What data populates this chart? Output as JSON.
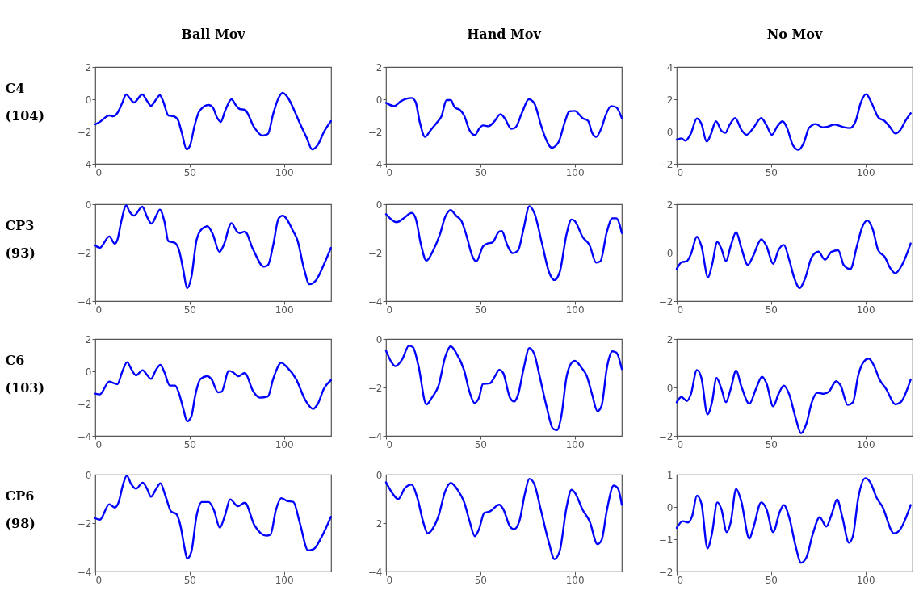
{
  "chart_data": [
    {
      "type": "line",
      "title": "Ball Mov",
      "ylabel": "C4 (104)",
      "xlim": [
        0,
        125
      ],
      "xticks": [
        0,
        50,
        100
      ],
      "ylim": [
        -4,
        2
      ],
      "yticks": [
        -4,
        -2,
        0,
        2
      ],
      "x": [
        0,
        2.4,
        7.4,
        9.5,
        11.7,
        14.2,
        16.4,
        18.1,
        20.5,
        24.9,
        27.4,
        29.5,
        32.3,
        34.2,
        35.9,
        38.7,
        41.6,
        43.7,
        45.9,
        48.4,
        50.1,
        52.7,
        55.1,
        60.1,
        62.3,
        64.4,
        66.5,
        68.7,
        72.2,
        74.4,
        76.5,
        79.3,
        84.3,
        88.6,
        91.5,
        94.3,
        97.2,
        99.3,
        102.1,
        105.7,
        108.5,
        112.1,
        114.9,
        117.8,
        121.3,
        124.9
      ],
      "series": [
        {
          "color": "#0000ff",
          "values": [
            -1.55,
            -1.4,
            -1.0,
            -1.05,
            -0.85,
            -0.25,
            0.3,
            0.1,
            -0.2,
            0.3,
            -0.1,
            -0.4,
            0,
            0.25,
            -0.1,
            -1.0,
            -1.05,
            -1.25,
            -2.1,
            -3.1,
            -2.9,
            -1.6,
            -0.75,
            -0.35,
            -0.5,
            -1.1,
            -1.4,
            -0.75,
            0,
            -0.35,
            -0.6,
            -0.65,
            -1.75,
            -2.25,
            -2.15,
            -0.9,
            0.1,
            0.4,
            0.1,
            -0.75,
            -1.5,
            -2.4,
            -3.1,
            -2.85,
            -2.0,
            -1.35
          ]
        }
      ]
    },
    {
      "type": "line",
      "title": "Hand Mov",
      "xlim": [
        0,
        125
      ],
      "xticks": [
        0,
        50,
        100
      ],
      "ylim": [
        -4,
        2
      ],
      "yticks": [
        -4,
        -2,
        0,
        2
      ],
      "x": [
        0,
        4.3,
        7.9,
        10.7,
        13.6,
        15.7,
        17.9,
        20.7,
        23.6,
        27.1,
        29.3,
        32.1,
        34.3,
        36.4,
        39.3,
        41.4,
        44.3,
        47.1,
        49.3,
        51.4,
        54.3,
        57.1,
        60.7,
        62.9,
        66.4,
        68.6,
        72.1,
        75.7,
        78.6,
        82.1,
        84.3,
        87.9,
        91.4,
        95,
        97.1,
        100,
        104.3,
        107.1,
        109.3,
        111.4,
        114.3,
        116.4,
        119.3,
        122.1,
        125
      ],
      "series": [
        {
          "color": "#0000ff",
          "values": [
            -0.22,
            -0.42,
            -0.12,
            0.03,
            0.08,
            -0.17,
            -1.42,
            -2.33,
            -1.92,
            -1.42,
            -1.08,
            -0.05,
            -0.05,
            -0.5,
            -0.67,
            -1.0,
            -1.92,
            -2.22,
            -1.83,
            -1.62,
            -1.67,
            -1.42,
            -0.92,
            -1.17,
            -1.83,
            -1.75,
            -0.83,
            0,
            -0.25,
            -1.58,
            -2.33,
            -3.0,
            -2.67,
            -1.33,
            -0.75,
            -0.72,
            -1.17,
            -1.33,
            -2.08,
            -2.33,
            -1.75,
            -1.0,
            -0.42,
            -0.5,
            -1.17
          ]
        }
      ]
    },
    {
      "type": "line",
      "title": "No Mov",
      "xlim": [
        0,
        125
      ],
      "xticks": [
        0,
        50,
        100
      ],
      "ylim": [
        -2,
        4
      ],
      "yticks": [
        -2,
        0,
        2,
        4
      ],
      "x": [
        0,
        2.5,
        4.6,
        7.5,
        10.7,
        13.1,
        15.9,
        18,
        20.8,
        23.7,
        25.8,
        27.9,
        31,
        34.2,
        37,
        40.6,
        44.8,
        47.6,
        50.4,
        53.2,
        56.1,
        58.2,
        61.7,
        64.5,
        67.3,
        70.1,
        73.7,
        77.2,
        80,
        83.5,
        87.7,
        91.8,
        94.8,
        97.6,
        100.4,
        103.2,
        106.8,
        110.3,
        113.1,
        115.9,
        118.7,
        121.5,
        124
      ],
      "series": [
        {
          "color": "#0000ff",
          "values": [
            -0.5,
            -0.42,
            -0.57,
            -0.12,
            0.81,
            0.47,
            -0.62,
            -0.2,
            0.64,
            0.05,
            -0.08,
            0.39,
            0.84,
            0.13,
            -0.2,
            0.22,
            0.84,
            0.39,
            -0.2,
            0.3,
            0.64,
            0.3,
            -0.87,
            -1.13,
            -0.71,
            0.22,
            0.47,
            0.27,
            0.3,
            0.44,
            0.3,
            0.22,
            0.64,
            1.8,
            2.32,
            1.8,
            0.89,
            0.64,
            0.27,
            -0.12,
            0.13,
            0.72,
            1.14
          ]
        }
      ]
    },
    {
      "type": "line",
      "ylabel": "CP3 (93)",
      "xlim": [
        0,
        125
      ],
      "xticks": [
        0,
        50,
        100
      ],
      "ylim": [
        -4,
        0
      ],
      "yticks": [
        -4,
        -2,
        0
      ],
      "x": [
        0,
        2.4,
        7.4,
        10.3,
        11.7,
        13.8,
        16.4,
        18.1,
        20.5,
        24.9,
        27.4,
        29.8,
        32.3,
        34.2,
        36.6,
        38.7,
        42.3,
        44.4,
        46.6,
        48.7,
        50.9,
        53.7,
        56.5,
        59.4,
        62.3,
        65.8,
        68,
        72.2,
        75.1,
        76.5,
        79.3,
        83.6,
        89.3,
        91.5,
        94.3,
        97.2,
        99.3,
        105,
        107.1,
        110.7,
        113.5,
        117.1,
        121.3,
        124.9
      ],
      "series": [
        {
          "color": "#0000ff",
          "values": [
            -1.7,
            -1.8,
            -1.33,
            -1.63,
            -1.47,
            -0.7,
            -0.05,
            -0.3,
            -0.47,
            -0.1,
            -0.52,
            -0.8,
            -0.47,
            -0.22,
            -0.7,
            -1.52,
            -1.6,
            -1.9,
            -2.7,
            -3.47,
            -3.02,
            -1.47,
            -1.02,
            -0.91,
            -1.24,
            -1.97,
            -1.7,
            -0.78,
            -1.13,
            -1.19,
            -1.13,
            -1.86,
            -2.58,
            -2.52,
            -1.69,
            -0.58,
            -0.47,
            -1.13,
            -1.47,
            -2.69,
            -3.3,
            -3.13,
            -2.47,
            -1.8
          ]
        }
      ]
    },
    {
      "type": "line",
      "xlim": [
        0,
        125
      ],
      "xticks": [
        0,
        50,
        100
      ],
      "ylim": [
        -4,
        0
      ],
      "yticks": [
        -4,
        -2,
        0
      ],
      "x": [
        0,
        5.7,
        9.3,
        13.6,
        15.7,
        18.6,
        21.4,
        25,
        28.6,
        31.4,
        34.3,
        37.1,
        40,
        42.9,
        45.7,
        47.9,
        51.4,
        53.6,
        56.4,
        60,
        61.4,
        64.3,
        67.1,
        70,
        72.9,
        76,
        78.6,
        82.9,
        86.4,
        89.3,
        92.1,
        95.7,
        98.3,
        100,
        104.3,
        107.9,
        111.4,
        113.6,
        117.1,
        120,
        122.1,
        125
      ],
      "series": [
        {
          "color": "#0000ff",
          "values": [
            -0.41,
            -0.74,
            -0.58,
            -0.36,
            -0.58,
            -1.69,
            -2.33,
            -1.91,
            -1.24,
            -0.52,
            -0.24,
            -0.47,
            -0.69,
            -1.36,
            -2.13,
            -2.36,
            -1.74,
            -1.63,
            -1.58,
            -1.13,
            -1.11,
            -1.69,
            -2.02,
            -1.91,
            -1.02,
            -0.08,
            -0.36,
            -1.69,
            -2.8,
            -3.13,
            -2.8,
            -1.24,
            -0.63,
            -0.69,
            -1.36,
            -1.69,
            -2.41,
            -2.36,
            -1.13,
            -0.58,
            -0.58,
            -1.19
          ]
        }
      ]
    },
    {
      "type": "line",
      "xlim": [
        0,
        125
      ],
      "xticks": [
        0,
        50,
        100
      ],
      "ylim": [
        -2,
        2
      ],
      "yticks": [
        -2,
        0,
        2
      ],
      "x": [
        0,
        2.5,
        5.4,
        7.5,
        10.7,
        13.1,
        16.6,
        18.7,
        21.5,
        23.7,
        26.1,
        28.6,
        31.5,
        34.2,
        37.7,
        40.6,
        44.8,
        47.6,
        51.1,
        53.9,
        56.8,
        59.6,
        62.4,
        65.2,
        68,
        71.6,
        75.1,
        78.6,
        82.1,
        85.6,
        88.5,
        92,
        95.5,
        98.3,
        101.1,
        104,
        106.8,
        110.3,
        113.1,
        115.9,
        119.4,
        124
      ],
      "series": [
        {
          "color": "#0000ff",
          "values": [
            -0.68,
            -0.4,
            -0.35,
            -0.07,
            0.66,
            0.27,
            -1.02,
            -0.51,
            0.44,
            0.16,
            -0.35,
            0.27,
            0.85,
            0.21,
            -0.51,
            -0.12,
            0.55,
            0.27,
            -0.46,
            0.1,
            0.32,
            -0.29,
            -1.07,
            -1.46,
            -1.07,
            -0.18,
            0.04,
            -0.29,
            0.04,
            0.1,
            -0.51,
            -0.68,
            0.27,
            1.05,
            1.33,
            0.94,
            0.1,
            -0.18,
            -0.63,
            -0.85,
            -0.51,
            0.38
          ]
        }
      ]
    },
    {
      "type": "line",
      "ylabel": "C6 (103)",
      "xlim": [
        0,
        125
      ],
      "xticks": [
        0,
        50,
        100
      ],
      "ylim": [
        -4,
        2
      ],
      "yticks": [
        -4,
        -2,
        0,
        2
      ],
      "x": [
        0,
        2.4,
        7.4,
        9.5,
        11.7,
        14.2,
        16.9,
        18.8,
        21.6,
        25.1,
        27.4,
        29.5,
        32.3,
        34.5,
        36.6,
        39.5,
        42.3,
        44.4,
        46.6,
        48.7,
        50.9,
        53,
        55.8,
        59.4,
        61.5,
        65.1,
        66.9,
        70.8,
        72.9,
        75.8,
        79.3,
        83.6,
        87.2,
        91.5,
        94.3,
        98.6,
        101.4,
        106.4,
        111.4,
        115.4,
        117.8,
        121.3,
        124.9
      ],
      "series": [
        {
          "color": "#0000ff",
          "values": [
            -1.38,
            -1.43,
            -0.63,
            -0.72,
            -0.8,
            -0.05,
            0.57,
            0.2,
            -0.25,
            0.07,
            -0.22,
            -0.47,
            0.12,
            0.4,
            -0.05,
            -0.88,
            -0.88,
            -1.38,
            -2.3,
            -3.1,
            -2.8,
            -1.47,
            -0.47,
            -0.3,
            -0.47,
            -1.3,
            -1.27,
            0.03,
            -0.05,
            -0.3,
            -0.1,
            -1.22,
            -1.63,
            -1.55,
            -0.47,
            0.53,
            0.28,
            -0.47,
            -1.8,
            -2.33,
            -2.05,
            -1.05,
            -0.55
          ]
        }
      ]
    },
    {
      "type": "line",
      "xlim": [
        0,
        125
      ],
      "xticks": [
        0,
        50,
        100
      ],
      "ylim": [
        -4,
        0
      ],
      "yticks": [
        -4,
        -2,
        0
      ],
      "x": [
        0,
        2.9,
        5,
        8.6,
        12.1,
        14.3,
        17.1,
        21.4,
        24.3,
        27.9,
        31.4,
        34.3,
        37.1,
        41.4,
        44.3,
        46.9,
        49.3,
        51.4,
        55,
        57.9,
        60,
        62.1,
        65.7,
        67.9,
        70,
        72.9,
        76,
        78.6,
        81.4,
        85,
        88.6,
        90.7,
        92.9,
        95.7,
        98.6,
        100,
        103.6,
        106.4,
        109.3,
        112.1,
        114.3,
        117.1,
        120,
        122.1,
        125
      ],
      "series": [
        {
          "color": "#0000ff",
          "values": [
            -0.48,
            -0.96,
            -1.12,
            -0.84,
            -0.28,
            -0.34,
            -1.07,
            -2.7,
            -2.42,
            -1.91,
            -0.73,
            -0.3,
            -0.56,
            -1.29,
            -2.19,
            -2.64,
            -2.42,
            -1.85,
            -1.83,
            -1.52,
            -1.27,
            -1.4,
            -2.42,
            -2.58,
            -2.3,
            -1.24,
            -0.37,
            -0.62,
            -1.52,
            -2.75,
            -3.71,
            -3.76,
            -3.2,
            -1.57,
            -0.96,
            -0.9,
            -1.18,
            -1.52,
            -2.3,
            -2.98,
            -2.75,
            -1.18,
            -0.51,
            -0.56,
            -1.24
          ]
        }
      ]
    },
    {
      "type": "line",
      "xlim": [
        0,
        125
      ],
      "xticks": [
        0,
        50,
        100
      ],
      "ylim": [
        -2,
        2
      ],
      "yticks": [
        -2,
        0,
        2
      ],
      "x": [
        0,
        2.5,
        5.4,
        7.5,
        10.7,
        13.1,
        16.3,
        18.7,
        21.1,
        23.7,
        26.1,
        28.6,
        31.5,
        34.2,
        38.5,
        42,
        45.2,
        47.6,
        51.1,
        53.9,
        56.8,
        59.6,
        63.1,
        65.9,
        68.7,
        71.6,
        74.4,
        77.9,
        80.7,
        84.5,
        87,
        90.6,
        93.4,
        96.2,
        99.1,
        101.8,
        104.6,
        107.5,
        111,
        115.9,
        118.7,
        124
      ],
      "series": [
        {
          "color": "#0000ff",
          "values": [
            -0.61,
            -0.39,
            -0.56,
            -0.28,
            0.72,
            0.39,
            -1.11,
            -0.61,
            0.39,
            -0.06,
            -0.61,
            -0.06,
            0.7,
            0.06,
            -0.67,
            -0.06,
            0.44,
            0.17,
            -0.78,
            -0.28,
            0.08,
            -0.28,
            -1.28,
            -1.89,
            -1.5,
            -0.61,
            -0.22,
            -0.26,
            -0.17,
            0.26,
            0.06,
            -0.72,
            -0.61,
            0.5,
            1.06,
            1.19,
            0.89,
            0.33,
            -0.06,
            -0.7,
            -0.61,
            0.33
          ]
        }
      ]
    },
    {
      "type": "line",
      "ylabel": "CP6 (98)",
      "xlim": [
        0,
        125
      ],
      "xticks": [
        0,
        50,
        100
      ],
      "ylim": [
        -4,
        0
      ],
      "yticks": [
        -4,
        -2,
        0
      ],
      "x": [
        0,
        2.4,
        7.4,
        10.3,
        12.4,
        14.5,
        16.7,
        18.8,
        21.6,
        25.1,
        27.4,
        29.5,
        32.3,
        34.5,
        37.3,
        40.2,
        43,
        45.2,
        47.3,
        48.7,
        50.9,
        53.7,
        56.5,
        60.1,
        62.9,
        66,
        68.7,
        71.5,
        75.5,
        79.3,
        84.3,
        90.7,
        92.9,
        95.7,
        98.6,
        101.4,
        105,
        108.5,
        112.8,
        115.7,
        119.9,
        124.9
      ],
      "series": [
        {
          "color": "#0000ff",
          "values": [
            -1.8,
            -1.86,
            -1.22,
            -1.36,
            -1.13,
            -0.47,
            -0.04,
            -0.36,
            -0.58,
            -0.33,
            -0.58,
            -0.91,
            -0.58,
            -0.36,
            -0.91,
            -1.52,
            -1.63,
            -2.13,
            -3.02,
            -3.47,
            -3.19,
            -1.69,
            -1.13,
            -1.13,
            -1.47,
            -2.19,
            -1.69,
            -1.02,
            -1.3,
            -1.16,
            -2.08,
            -2.52,
            -2.47,
            -1.47,
            -0.97,
            -1.08,
            -1.13,
            -2.02,
            -3.13,
            -3.08,
            -2.58,
            -1.74
          ]
        }
      ]
    },
    {
      "type": "line",
      "xlim": [
        0,
        125
      ],
      "xticks": [
        0,
        50,
        100
      ],
      "ylim": [
        -4,
        0
      ],
      "yticks": [
        -4,
        {
          "value": -2,
          "label": "2"
        },
        0
      ],
      "x": [
        0,
        3.6,
        6.4,
        10,
        13.6,
        16.4,
        20,
        22.1,
        25,
        27.9,
        31.4,
        34.3,
        37.9,
        41.4,
        44.3,
        47.1,
        49.3,
        52.1,
        55,
        60,
        62.1,
        65.7,
        67.9,
        70.7,
        73.6,
        76,
        78.6,
        82.1,
        86.4,
        89.3,
        92.1,
        95.7,
        98.3,
        100,
        104.3,
        107.9,
        112.1,
        114.3,
        117.1,
        120.7,
        122.9,
        125
      ],
      "series": [
        {
          "color": "#0000ff",
          "values": [
            -0.32,
            -0.79,
            -1.01,
            -0.56,
            -0.41,
            -0.9,
            -2.03,
            -2.42,
            -2.2,
            -1.69,
            -0.68,
            -0.34,
            -0.62,
            -1.13,
            -1.92,
            -2.54,
            -2.25,
            -1.58,
            -1.52,
            -1.24,
            -1.41,
            -2.14,
            -2.25,
            -1.92,
            -0.79,
            -0.17,
            -0.39,
            -1.46,
            -2.82,
            -3.49,
            -3.15,
            -1.35,
            -0.62,
            -0.73,
            -1.46,
            -1.92,
            -2.87,
            -2.7,
            -1.46,
            -0.45,
            -0.56,
            -1.24
          ]
        }
      ]
    },
    {
      "type": "line",
      "xlim": [
        0,
        125
      ],
      "xticks": [
        0,
        50,
        100
      ],
      "ylim": [
        -2,
        1
      ],
      "yticks": [
        -2,
        -1,
        0,
        1
      ],
      "x": [
        0,
        3.2,
        6.1,
        8.2,
        10.7,
        13.1,
        16.3,
        18.7,
        21.5,
        23.7,
        26.5,
        28.6,
        31.5,
        34.2,
        38.5,
        40.6,
        44.8,
        47.6,
        51.1,
        54.6,
        56.8,
        59.6,
        63.1,
        65.9,
        68.7,
        72.2,
        75.8,
        79.3,
        82.1,
        85,
        87.8,
        91.3,
        93.4,
        96.2,
        100,
        102.5,
        106.1,
        108.9,
        115.2,
        118,
        124
      ],
      "series": [
        {
          "color": "#0000ff",
          "values": [
            -0.65,
            -0.44,
            -0.48,
            -0.28,
            0.35,
            0.1,
            -1.28,
            -0.82,
            0.14,
            -0.07,
            -0.78,
            -0.48,
            0.56,
            0.18,
            -0.98,
            -0.65,
            0.14,
            -0.07,
            -0.78,
            -0.15,
            0.06,
            -0.32,
            -1.23,
            -1.73,
            -1.57,
            -0.82,
            -0.32,
            -0.61,
            -0.23,
            0.23,
            -0.32,
            -1.11,
            -0.9,
            0.27,
            0.89,
            0.77,
            0.27,
            0.02,
            -0.82,
            -0.73,
            0.06
          ]
        }
      ]
    }
  ]
}
